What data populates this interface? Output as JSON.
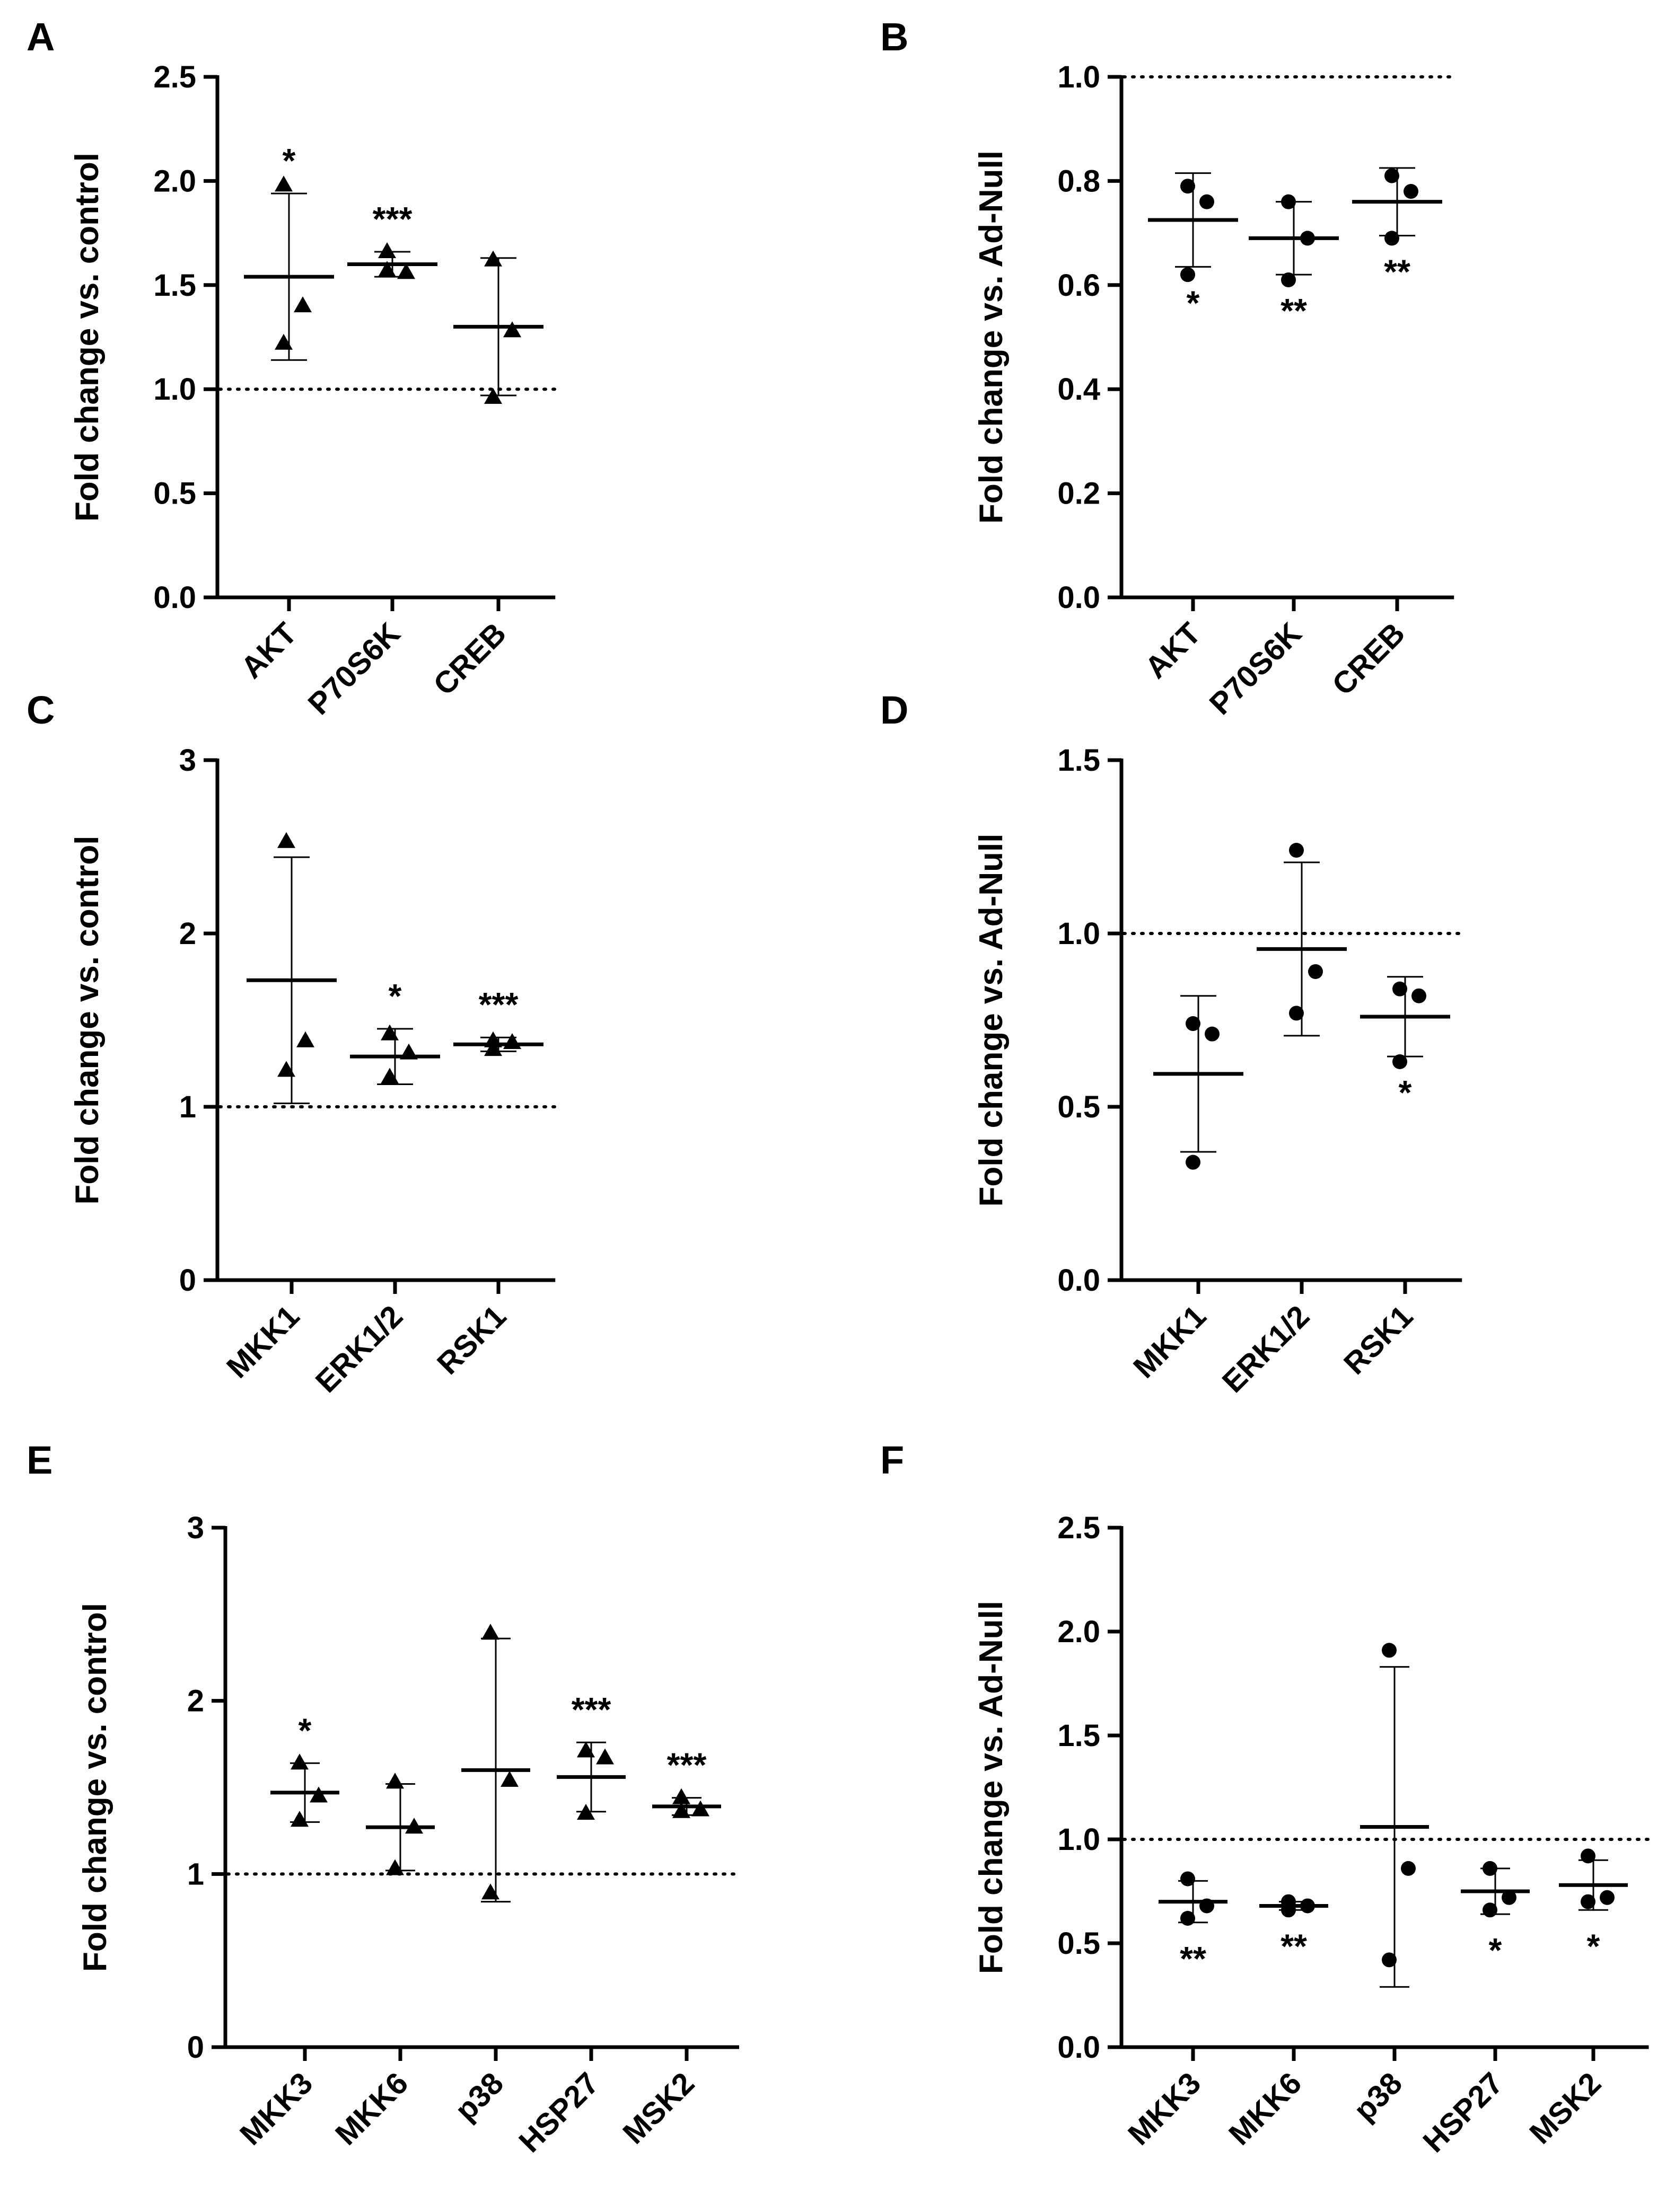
{
  "chart_data": [
    {
      "id": "panelA",
      "panel_letter": "A",
      "type": "scatter",
      "marker": "triangle",
      "ylabel": "Fold change vs. control",
      "ylim": [
        0,
        2.5
      ],
      "yticks": [
        0,
        0.5,
        1.0,
        1.5,
        2.0,
        2.5
      ],
      "ytick_labels": [
        "0.0",
        "0.5",
        "1.0",
        "1.5",
        "2.0",
        "2.5"
      ],
      "reference_line": 1.0,
      "categories": [
        "AKT",
        "P70S6K",
        "CREB"
      ],
      "points": [
        [
          1.98,
          1.4,
          1.22
        ],
        [
          1.66,
          1.56,
          1.57
        ],
        [
          1.62,
          1.28,
          0.96
        ]
      ],
      "mean": [
        1.54,
        1.6,
        1.3
      ],
      "sd": [
        0.4,
        0.06,
        0.33
      ],
      "significance": [
        "*",
        "***",
        ""
      ],
      "sig_position": [
        "above",
        "above",
        "above"
      ]
    },
    {
      "id": "panelB",
      "panel_letter": "B",
      "type": "scatter",
      "marker": "circle",
      "ylabel": "Fold change vs. Ad-Null",
      "ylim": [
        0,
        1.0
      ],
      "yticks": [
        0,
        0.2,
        0.4,
        0.6,
        0.8,
        1.0
      ],
      "ytick_labels": [
        "0.0",
        "0.2",
        "0.4",
        "0.6",
        "0.8",
        "1.0"
      ],
      "reference_line": 1.0,
      "categories": [
        "AKT",
        "P70S6K",
        "CREB"
      ],
      "points": [
        [
          0.79,
          0.76,
          0.62
        ],
        [
          0.76,
          0.69,
          0.61
        ],
        [
          0.81,
          0.78,
          0.69
        ]
      ],
      "mean": [
        0.725,
        0.69,
        0.76
      ],
      "sd": [
        0.09,
        0.07,
        0.065
      ],
      "significance": [
        "*",
        "**",
        "**"
      ],
      "sig_position": [
        "below",
        "below",
        "below"
      ]
    },
    {
      "id": "panelC",
      "panel_letter": "C",
      "type": "scatter",
      "marker": "triangle",
      "ylabel": "Fold change vs. control",
      "ylim": [
        0,
        3
      ],
      "yticks": [
        0,
        1,
        2,
        3
      ],
      "ytick_labels": [
        "0",
        "1",
        "2",
        "3"
      ],
      "reference_line": 1.0,
      "categories": [
        "MKK1",
        "ERK1/2",
        "RSK1"
      ],
      "points": [
        [
          2.53,
          1.38,
          1.21
        ],
        [
          1.42,
          1.31,
          1.17
        ],
        [
          1.38,
          1.37,
          1.33
        ]
      ],
      "mean": [
        1.73,
        1.29,
        1.36
      ],
      "sd": [
        0.71,
        0.16,
        0.04
      ],
      "significance": [
        "",
        "*",
        "***"
      ],
      "sig_position": [
        "above",
        "above",
        "above"
      ]
    },
    {
      "id": "panelD",
      "panel_letter": "D",
      "type": "scatter",
      "marker": "circle",
      "ylabel": "Fold change vs. Ad-Null",
      "ylim": [
        0,
        1.5
      ],
      "yticks": [
        0,
        0.5,
        1.0,
        1.5
      ],
      "ytick_labels": [
        "0.0",
        "0.5",
        "1.0",
        "1.5"
      ],
      "reference_line": 1.0,
      "categories": [
        "MKK1",
        "ERK1/2",
        "RSK1"
      ],
      "points": [
        [
          0.74,
          0.71,
          0.34
        ],
        [
          1.24,
          0.89,
          0.77
        ],
        [
          0.84,
          0.82,
          0.63
        ]
      ],
      "mean": [
        0.595,
        0.955,
        0.76
      ],
      "sd": [
        0.225,
        0.25,
        0.115
      ],
      "significance": [
        "",
        "",
        "*"
      ],
      "sig_position": [
        "below",
        "below",
        "below"
      ]
    },
    {
      "id": "panelE",
      "panel_letter": "E",
      "type": "scatter",
      "marker": "triangle",
      "ylabel": "Fold change vs. control",
      "ylim": [
        0,
        3
      ],
      "yticks": [
        0,
        1,
        2,
        3
      ],
      "ytick_labels": [
        "0",
        "1",
        "2",
        "3"
      ],
      "reference_line": 1.0,
      "categories": [
        "MKK3",
        "MKK6",
        "p38",
        "HSP27",
        "MSK2"
      ],
      "points": [
        [
          1.64,
          1.45,
          1.31
        ],
        [
          1.53,
          1.27,
          1.03
        ],
        [
          2.39,
          1.54,
          0.89
        ],
        [
          1.71,
          1.67,
          1.35
        ],
        [
          1.44,
          1.37,
          1.36
        ]
      ],
      "mean": [
        1.47,
        1.27,
        1.6,
        1.56,
        1.39
      ],
      "sd": [
        0.17,
        0.25,
        0.76,
        0.2,
        0.05
      ],
      "significance": [
        "*",
        "",
        "",
        "***",
        "***"
      ],
      "sig_position": [
        "above",
        "above",
        "above",
        "above",
        "above"
      ]
    },
    {
      "id": "panelF",
      "panel_letter": "F",
      "type": "scatter",
      "marker": "circle",
      "ylabel": "Fold change vs. Ad-Null",
      "ylim": [
        0,
        2.5
      ],
      "yticks": [
        0,
        0.5,
        1.0,
        1.5,
        2.0,
        2.5
      ],
      "ytick_labels": [
        "0.0",
        "0.5",
        "1.0",
        "1.5",
        "2.0",
        "2.5"
      ],
      "reference_line": 1.0,
      "categories": [
        "MKK3",
        "MKK6",
        "p38",
        "HSP27",
        "MSK2"
      ],
      "points": [
        [
          0.81,
          0.68,
          0.62
        ],
        [
          0.7,
          0.68,
          0.66
        ],
        [
          1.91,
          0.86,
          0.42
        ],
        [
          0.86,
          0.72,
          0.66
        ],
        [
          0.92,
          0.72,
          0.7
        ]
      ],
      "mean": [
        0.7,
        0.68,
        1.06,
        0.75,
        0.78
      ],
      "sd": [
        0.1,
        0.02,
        0.77,
        0.11,
        0.12
      ],
      "significance": [
        "**",
        "**",
        "",
        "*",
        "*"
      ],
      "sig_position": [
        "below",
        "below",
        "below",
        "below",
        "below"
      ]
    }
  ]
}
